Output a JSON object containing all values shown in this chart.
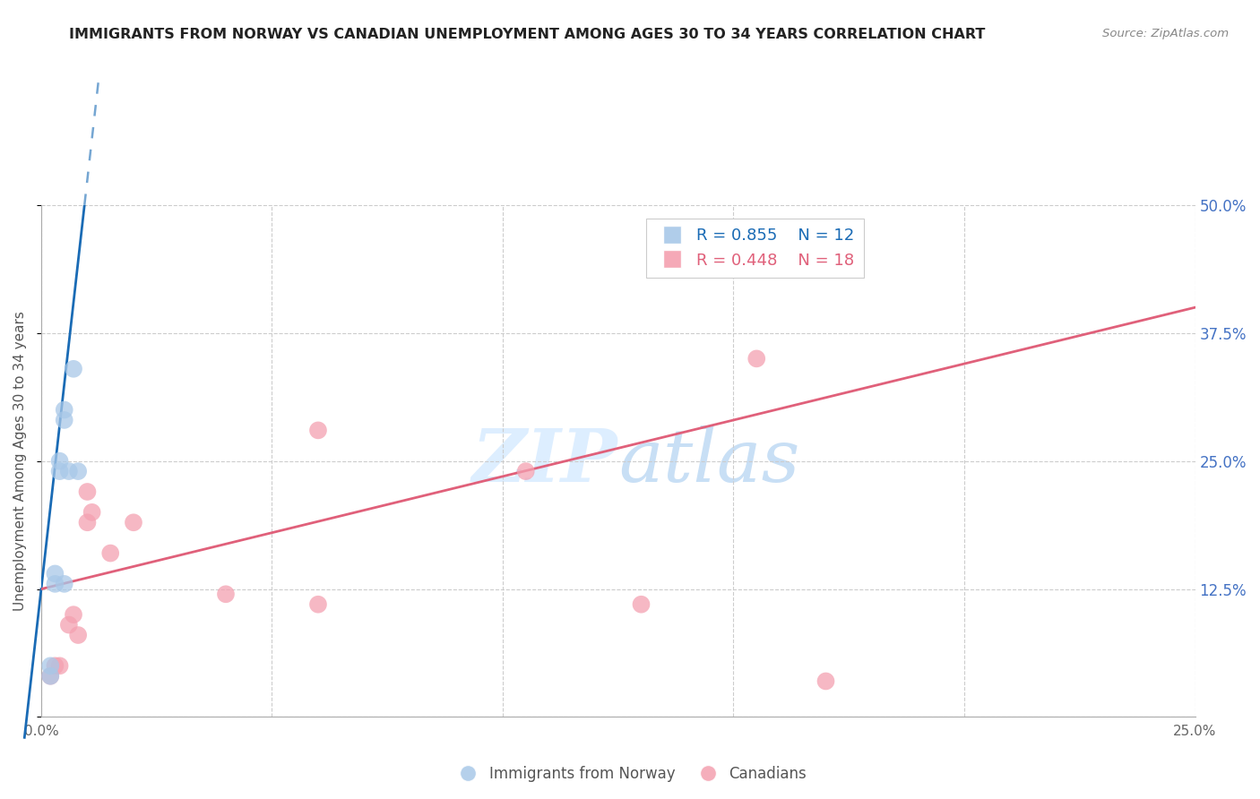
{
  "title": "IMMIGRANTS FROM NORWAY VS CANADIAN UNEMPLOYMENT AMONG AGES 30 TO 34 YEARS CORRELATION CHART",
  "source": "Source: ZipAtlas.com",
  "ylabel": "Unemployment Among Ages 30 to 34 years",
  "xlim": [
    0.0,
    0.25
  ],
  "ylim": [
    0.0,
    0.5
  ],
  "xticks": [
    0.0,
    0.05,
    0.1,
    0.15,
    0.2,
    0.25
  ],
  "xtick_labels": [
    "0.0%",
    "",
    "",
    "",
    "",
    "25.0%"
  ],
  "yticks": [
    0.0,
    0.125,
    0.25,
    0.375,
    0.5
  ],
  "ytick_labels": [
    "",
    "12.5%",
    "25.0%",
    "37.5%",
    "50.0%"
  ],
  "blue_r": "0.855",
  "blue_n": "12",
  "pink_r": "0.448",
  "pink_n": "18",
  "blue_color": "#a8c8e8",
  "pink_color": "#f4a0b0",
  "blue_line_color": "#1a6bb5",
  "pink_line_color": "#e0607a",
  "right_label_color": "#4472c4",
  "background_color": "#ffffff",
  "watermark_color": "#ddeeff",
  "blue_points_x": [
    0.002,
    0.002,
    0.003,
    0.003,
    0.004,
    0.004,
    0.005,
    0.005,
    0.005,
    0.006,
    0.007,
    0.008
  ],
  "blue_points_y": [
    0.04,
    0.05,
    0.13,
    0.14,
    0.24,
    0.25,
    0.3,
    0.29,
    0.13,
    0.24,
    0.34,
    0.24
  ],
  "pink_points_x": [
    0.002,
    0.003,
    0.004,
    0.006,
    0.007,
    0.008,
    0.01,
    0.01,
    0.011,
    0.015,
    0.02,
    0.04,
    0.06,
    0.06,
    0.105,
    0.13,
    0.155,
    0.17
  ],
  "pink_points_y": [
    0.04,
    0.05,
    0.05,
    0.09,
    0.1,
    0.08,
    0.19,
    0.22,
    0.2,
    0.16,
    0.19,
    0.12,
    0.11,
    0.28,
    0.24,
    0.11,
    0.35,
    0.035
  ],
  "blue_line_intercept": 0.125,
  "blue_line_slope": 40.0,
  "pink_line_x0": 0.0,
  "pink_line_y0": 0.125,
  "pink_line_x1": 0.25,
  "pink_line_y1": 0.4
}
